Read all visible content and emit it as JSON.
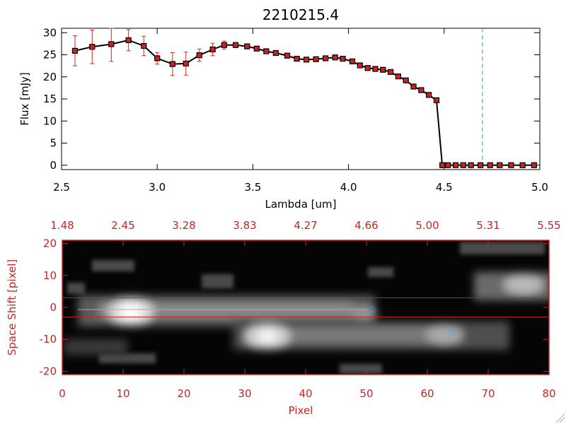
{
  "colors": {
    "black_axis": "#000000",
    "red_axis": "#cc2222",
    "marker_fill": "#cc2222",
    "error_bar": "#dd2222",
    "cutoff_line": "#3399cc",
    "star": "#3399ff",
    "extraction_lines": "#cc2222"
  },
  "chart_data": [
    {
      "type": "line",
      "title": "2210215.4",
      "xlabel": "Lambda [um]",
      "ylabel": "Flux [mJy]",
      "xlim": [
        2.5,
        5.0
      ],
      "ylim": [
        -1,
        31
      ],
      "x_ticks": [
        "2.5",
        "3.0",
        "3.5",
        "4.0",
        "4.5",
        "5.0"
      ],
      "y_ticks": [
        "0",
        "5",
        "10",
        "15",
        "20",
        "25",
        "30"
      ],
      "grid": false,
      "cutoff_line_x": 4.7,
      "series": [
        {
          "x": [
            2.57,
            2.66,
            2.76,
            2.85,
            2.93,
            3.0,
            3.08,
            3.15,
            3.22,
            3.29,
            3.35,
            3.41,
            3.47,
            3.52,
            3.57,
            3.62,
            3.68,
            3.73,
            3.78,
            3.83,
            3.88,
            3.93,
            3.97,
            4.02,
            4.06,
            4.1,
            4.14,
            4.18,
            4.22,
            4.26,
            4.3,
            4.34,
            4.38,
            4.42,
            4.46,
            4.49,
            4.52,
            4.56,
            4.6,
            4.64,
            4.69,
            4.74,
            4.79,
            4.85,
            4.91,
            4.97
          ],
          "y": [
            25.9,
            26.8,
            27.4,
            28.3,
            27.0,
            24.2,
            22.9,
            23.0,
            24.9,
            26.2,
            27.2,
            27.2,
            26.9,
            26.4,
            25.8,
            25.4,
            24.8,
            24.1,
            23.9,
            24.0,
            24.2,
            24.4,
            24.1,
            23.5,
            22.6,
            22.0,
            21.8,
            21.6,
            21.1,
            20.1,
            19.2,
            17.8,
            17.0,
            15.9,
            14.7,
            0,
            0,
            0,
            0,
            0,
            0,
            0,
            0,
            0,
            0,
            0
          ],
          "yerr": [
            3.4,
            3.8,
            3.9,
            2.4,
            2.2,
            1.3,
            2.6,
            2.6,
            1.4,
            1.4,
            0.9,
            0.5,
            0.4,
            0.3,
            0.3,
            0.3,
            0.3,
            0.3,
            0.3,
            0.3,
            0.3,
            0.3,
            0.3,
            0.3,
            0.3,
            0.3,
            0.3,
            0.3,
            0.3,
            0.4,
            0.4,
            0.4,
            0.4,
            0.4,
            0.5,
            0,
            0,
            0,
            0,
            0,
            0,
            0,
            0,
            0,
            0,
            0
          ]
        }
      ]
    },
    {
      "type": "heatmap",
      "xlabel": "Pixel",
      "ylabel": "Space Shift [pixel]",
      "xlim": [
        0,
        80
      ],
      "ylim": [
        -21,
        21
      ],
      "x_ticks": [
        "0",
        "10",
        "20",
        "30",
        "40",
        "50",
        "60",
        "70",
        "80"
      ],
      "y_ticks": [
        "20",
        "10",
        "0",
        "-10",
        "-20"
      ],
      "top_axis_ticks": [
        "1.48",
        "2.45",
        "3.28",
        "3.83",
        "4.27",
        "4.66",
        "5.00",
        "5.31",
        "5.55"
      ],
      "extraction_aperture": [
        -3,
        3
      ],
      "stars": [
        {
          "x": 51,
          "y": -0.6
        },
        {
          "x": 64,
          "y": -7.5
        }
      ],
      "sources": [
        {
          "x": 11,
          "y": -0.5,
          "intensity": 1.0
        },
        {
          "x": 33,
          "y": -8.5,
          "intensity": 0.9
        },
        {
          "x": 63,
          "y": -7.5,
          "intensity": 0.55
        },
        {
          "x": 76,
          "y": 7.5,
          "intensity": 0.55
        },
        {
          "x": 51,
          "y": -1.0,
          "intensity": 0.4
        }
      ]
    }
  ]
}
